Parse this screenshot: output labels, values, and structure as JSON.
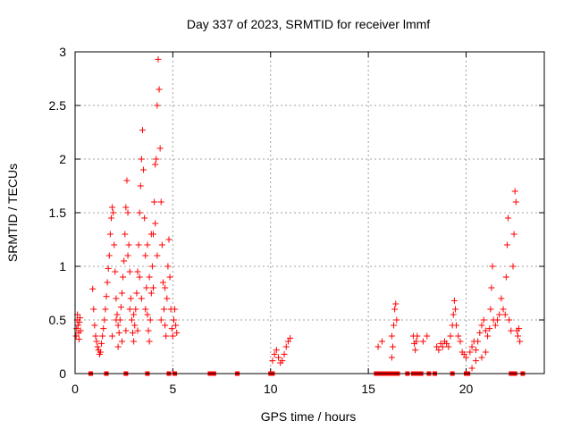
{
  "chart_data": {
    "type": "scatter",
    "title": "Day 337 of 2023, SRMTID for receiver lmmf",
    "xlabel": "GPS time / hours",
    "ylabel": "SRMTID / TECUs",
    "xlim": [
      0,
      24
    ],
    "ylim": [
      0,
      3
    ],
    "xticks": [
      0,
      5,
      10,
      15,
      20
    ],
    "yticks": [
      0,
      0.5,
      1,
      1.5,
      2,
      2.5,
      3
    ],
    "grid": true,
    "marker_color": "#ff0000",
    "series": [
      {
        "name": "SRMTID",
        "points": [
          [
            0.05,
            0.35
          ],
          [
            0.08,
            0.42
          ],
          [
            0.1,
            0.5
          ],
          [
            0.12,
            0.55
          ],
          [
            0.15,
            0.45
          ],
          [
            0.18,
            0.38
          ],
          [
            0.2,
            0.32
          ],
          [
            0.22,
            0.48
          ],
          [
            0.25,
            0.52
          ],
          [
            0.28,
            0.4
          ],
          [
            0.9,
            0.79
          ],
          [
            0.95,
            0.6
          ],
          [
            1.0,
            0.45
          ],
          [
            1.05,
            0.35
          ],
          [
            1.1,
            0.3
          ],
          [
            1.15,
            0.25
          ],
          [
            1.2,
            0.22
          ],
          [
            1.25,
            0.18
          ],
          [
            1.3,
            0.2
          ],
          [
            1.35,
            0.28
          ],
          [
            1.4,
            0.35
          ],
          [
            1.45,
            0.42
          ],
          [
            1.5,
            0.5
          ],
          [
            1.55,
            0.6
          ],
          [
            1.6,
            0.72
          ],
          [
            1.65,
            0.85
          ],
          [
            1.7,
            0.98
          ],
          [
            1.75,
            1.1
          ],
          [
            1.8,
            1.3
          ],
          [
            1.85,
            1.45
          ],
          [
            1.9,
            1.55
          ],
          [
            1.95,
            1.5
          ],
          [
            2.0,
            1.2
          ],
          [
            2.05,
            0.95
          ],
          [
            2.1,
            0.7
          ],
          [
            2.15,
            0.55
          ],
          [
            2.2,
            0.45
          ],
          [
            2.25,
            0.38
          ],
          [
            2.3,
            0.5
          ],
          [
            2.35,
            0.62
          ],
          [
            2.4,
            0.75
          ],
          [
            2.45,
            0.9
          ],
          [
            2.5,
            1.05
          ],
          [
            2.55,
            1.3
          ],
          [
            2.6,
            1.55
          ],
          [
            2.65,
            1.8
          ],
          [
            2.7,
            1.5
          ],
          [
            2.75,
            1.2
          ],
          [
            2.8,
            0.95
          ],
          [
            2.85,
            0.7
          ],
          [
            2.9,
            0.5
          ],
          [
            2.95,
            0.38
          ],
          [
            3.0,
            0.3
          ],
          [
            3.05,
            0.45
          ],
          [
            3.1,
            0.6
          ],
          [
            3.15,
            0.75
          ],
          [
            3.2,
            0.95
          ],
          [
            3.25,
            1.2
          ],
          [
            3.3,
            1.5
          ],
          [
            3.35,
            1.75
          ],
          [
            3.4,
            2.0
          ],
          [
            3.45,
            2.27
          ],
          [
            3.5,
            1.9
          ],
          [
            3.55,
            1.45
          ],
          [
            3.6,
            1.1
          ],
          [
            3.65,
            0.8
          ],
          [
            3.7,
            0.55
          ],
          [
            3.75,
            0.4
          ],
          [
            3.8,
            0.3
          ],
          [
            3.85,
            0.5
          ],
          [
            3.9,
            0.75
          ],
          [
            3.95,
            1.0
          ],
          [
            4.0,
            1.3
          ],
          [
            4.05,
            1.6
          ],
          [
            4.1,
            1.95
          ],
          [
            4.15,
            2.0
          ],
          [
            4.2,
            2.5
          ],
          [
            4.25,
            2.93
          ],
          [
            4.3,
            2.65
          ],
          [
            4.35,
            2.1
          ],
          [
            4.4,
            1.6
          ],
          [
            4.45,
            1.2
          ],
          [
            4.5,
            0.85
          ],
          [
            4.55,
            0.6
          ],
          [
            4.6,
            0.45
          ],
          [
            4.65,
            0.35
          ],
          [
            4.7,
            0.7
          ],
          [
            4.75,
            1.0
          ],
          [
            4.8,
            1.25
          ],
          [
            4.85,
            0.9
          ],
          [
            4.9,
            0.6
          ],
          [
            4.95,
            0.42
          ],
          [
            5.0,
            0.35
          ],
          [
            5.05,
            0.5
          ],
          [
            5.1,
            0.6
          ],
          [
            5.15,
            0.45
          ],
          [
            5.2,
            0.38
          ],
          [
            2.2,
            0.25
          ],
          [
            2.6,
            0.4
          ],
          [
            3.0,
            0.55
          ],
          [
            3.4,
            0.7
          ],
          [
            3.8,
            0.9
          ],
          [
            4.2,
            1.1
          ],
          [
            4.6,
            0.8
          ],
          [
            2.4,
            0.3
          ],
          [
            2.8,
            0.6
          ],
          [
            3.2,
            0.4
          ],
          [
            3.6,
            0.6
          ],
          [
            4.0,
            0.8
          ],
          [
            4.4,
            0.5
          ],
          [
            1.9,
            0.35
          ],
          [
            2.1,
            0.5
          ],
          [
            3.3,
            0.9
          ],
          [
            3.7,
            1.2
          ],
          [
            4.1,
            1.4
          ],
          [
            2.7,
            1.1
          ],
          [
            3.9,
            1.3
          ],
          [
            10.1,
            0.12
          ],
          [
            10.2,
            0.18
          ],
          [
            10.3,
            0.22
          ],
          [
            10.4,
            0.15
          ],
          [
            10.5,
            0.1
          ],
          [
            10.6,
            0.12
          ],
          [
            10.7,
            0.18
          ],
          [
            10.8,
            0.25
          ],
          [
            10.9,
            0.3
          ],
          [
            11.0,
            0.33
          ],
          [
            15.5,
            0.25
          ],
          [
            15.7,
            0.3
          ],
          [
            16.2,
            0.35
          ],
          [
            16.3,
            0.45
          ],
          [
            16.35,
            0.6
          ],
          [
            16.4,
            0.65
          ],
          [
            16.45,
            0.5
          ],
          [
            16.2,
            0.15
          ],
          [
            16.25,
            0.25
          ],
          [
            17.3,
            0.35
          ],
          [
            17.35,
            0.28
          ],
          [
            17.4,
            0.22
          ],
          [
            17.45,
            0.3
          ],
          [
            17.5,
            0.35
          ],
          [
            17.8,
            0.3
          ],
          [
            18.0,
            0.35
          ],
          [
            18.5,
            0.25
          ],
          [
            18.6,
            0.22
          ],
          [
            18.7,
            0.28
          ],
          [
            18.8,
            0.25
          ],
          [
            18.9,
            0.3
          ],
          [
            19.0,
            0.28
          ],
          [
            19.1,
            0.25
          ],
          [
            19.2,
            0.35
          ],
          [
            19.3,
            0.45
          ],
          [
            19.35,
            0.55
          ],
          [
            19.4,
            0.68
          ],
          [
            19.45,
            0.6
          ],
          [
            19.5,
            0.45
          ],
          [
            19.6,
            0.35
          ],
          [
            19.7,
            0.3
          ],
          [
            19.8,
            0.2
          ],
          [
            19.9,
            0.18
          ],
          [
            20.0,
            0.15
          ],
          [
            20.2,
            0.2
          ],
          [
            20.3,
            0.25
          ],
          [
            20.4,
            0.3
          ],
          [
            20.5,
            0.22
          ],
          [
            20.6,
            0.3
          ],
          [
            20.7,
            0.38
          ],
          [
            20.8,
            0.45
          ],
          [
            20.9,
            0.5
          ],
          [
            21.0,
            0.4
          ],
          [
            21.1,
            0.35
          ],
          [
            21.2,
            0.42
          ],
          [
            21.25,
            0.6
          ],
          [
            21.3,
            0.8
          ],
          [
            21.35,
            1.0
          ],
          [
            21.4,
            0.5
          ],
          [
            21.5,
            0.45
          ],
          [
            21.6,
            0.5
          ],
          [
            21.7,
            0.55
          ],
          [
            21.8,
            0.7
          ],
          [
            21.9,
            0.6
          ],
          [
            22.0,
            0.55
          ],
          [
            22.05,
            0.9
          ],
          [
            22.1,
            1.2
          ],
          [
            22.15,
            1.45
          ],
          [
            22.2,
            0.5
          ],
          [
            22.3,
            0.4
          ],
          [
            22.4,
            1.0
          ],
          [
            22.45,
            1.3
          ],
          [
            22.5,
            1.7
          ],
          [
            22.55,
            1.6
          ],
          [
            22.6,
            0.4
          ],
          [
            22.65,
            0.35
          ],
          [
            22.7,
            0.42
          ],
          [
            22.75,
            0.3
          ],
          [
            20.3,
            0.05
          ],
          [
            20.5,
            0.12
          ],
          [
            20.8,
            0.15
          ],
          [
            21.0,
            0.2
          ]
        ]
      }
    ],
    "baseline_markers_x": [
      0.8,
      1.6,
      2.6,
      3.7,
      4.8,
      5.1,
      6.9,
      7.1,
      8.3,
      10.0,
      10.1,
      15.4,
      15.6,
      15.8,
      16.0,
      16.1,
      16.3,
      16.5,
      17.0,
      17.3,
      17.5,
      17.7,
      18.1,
      18.4,
      19.3,
      20.0,
      20.1,
      22.3,
      22.5,
      22.9
    ]
  }
}
